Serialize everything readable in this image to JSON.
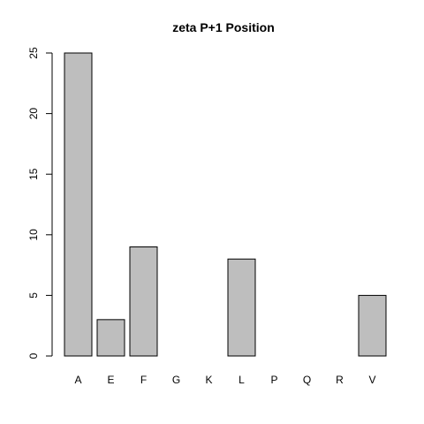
{
  "chart_data": {
    "type": "bar",
    "title": "zeta P+1 Position",
    "xlabel": "",
    "ylabel": "",
    "categories": [
      "A",
      "E",
      "F",
      "G",
      "K",
      "L",
      "P",
      "Q",
      "R",
      "V"
    ],
    "values": [
      25,
      3,
      9,
      0,
      0,
      8,
      0,
      0,
      0,
      5
    ],
    "ylim": [
      0,
      25
    ],
    "yticks": [
      0,
      5,
      10,
      15,
      20,
      25
    ],
    "grid": false,
    "legend": "none",
    "bar_fill": "#bebebe",
    "bar_stroke": "#000000"
  }
}
